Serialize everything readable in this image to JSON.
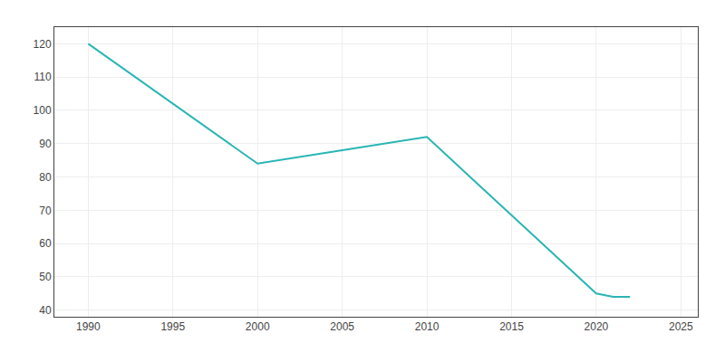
{
  "chart_data": {
    "type": "line",
    "x": [
      1990,
      2000,
      2005,
      2010,
      2020,
      2021,
      2022
    ],
    "values": [
      120,
      84,
      88,
      92,
      45,
      44,
      44
    ],
    "color": "#2ab5b5",
    "xlim": [
      1988,
      2026
    ],
    "xticks": [
      1990,
      1995,
      2000,
      2005,
      2010,
      2015,
      2020,
      2025
    ],
    "ylim": [
      38,
      125
    ],
    "yticks": [
      40,
      50,
      60,
      70,
      80,
      90,
      100,
      110,
      120
    ],
    "grid": true
  }
}
